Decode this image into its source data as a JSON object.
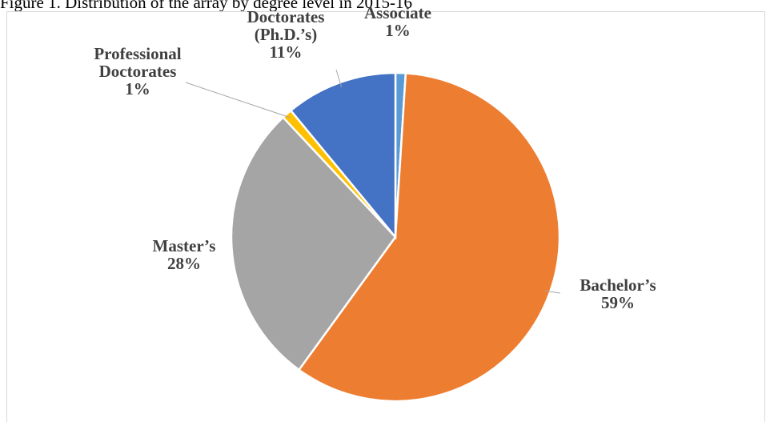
{
  "chart_data": {
    "type": "pie",
    "title": "Figure 1. Distribution of the array by degree level in 2015-16",
    "categories": [
      "Associate",
      "Bachelor’s",
      "Master’s",
      "Professional Doctorates",
      "Doctorates (Ph.D.’s)"
    ],
    "values": [
      1,
      59,
      28,
      1,
      11
    ],
    "value_labels": [
      "1%",
      "59%",
      "28%",
      "1%",
      "11%"
    ],
    "colors": [
      "#5b9bd5",
      "#ed7d31",
      "#a5a5a5",
      "#ffc000",
      "#4472c4"
    ]
  }
}
